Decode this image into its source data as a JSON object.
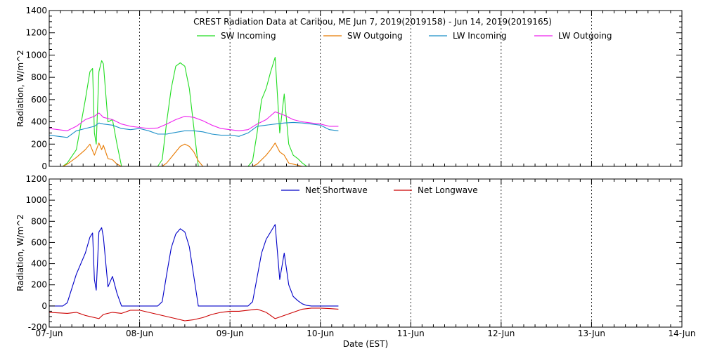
{
  "chart_data": [
    {
      "type": "line",
      "title": "CREST Radiation Data at Caribou, ME   Jun  7, 2019(2019158) - Jun 14, 2019(2019165)",
      "xlabel": "",
      "ylabel": "Radiation, W/m^2",
      "xlim": [
        0,
        7
      ],
      "ylim": [
        0,
        1400
      ],
      "yticks": [
        "0",
        "200",
        "400",
        "600",
        "800",
        "1000",
        "1200",
        "1400"
      ],
      "grid": true,
      "legend_position": "top",
      "series": [
        {
          "name": "SW Incoming",
          "color": "#22dd22",
          "x": [
            0,
            0.1,
            0.15,
            0.2,
            0.3,
            0.4,
            0.45,
            0.48,
            0.5,
            0.52,
            0.55,
            0.58,
            0.6,
            0.65,
            0.7,
            0.75,
            0.8,
            0.85,
            0.9,
            0.95,
            1.0,
            1.05,
            1.1,
            1.15,
            1.2,
            1.25,
            1.3,
            1.35,
            1.4,
            1.45,
            1.5,
            1.55,
            1.6,
            1.65,
            1.7,
            1.75,
            1.8,
            1.85,
            1.9,
            1.95,
            2.0,
            2.05,
            2.1,
            2.15,
            2.2,
            2.25,
            2.3,
            2.35,
            2.4,
            2.45,
            2.5,
            2.55,
            2.6,
            2.65,
            2.7,
            2.75,
            2.8,
            2.85,
            2.9,
            2.95,
            3.0
          ],
          "y": [
            0,
            0,
            0,
            30,
            150,
            600,
            850,
            880,
            300,
            200,
            850,
            950,
            920,
            400,
            420,
            200,
            0,
            0,
            0,
            0,
            0,
            0,
            0,
            0,
            0,
            60,
            400,
            700,
            900,
            930,
            900,
            700,
            350,
            0,
            0,
            0,
            0,
            0,
            0,
            0,
            0,
            0,
            0,
            0,
            0,
            50,
            300,
            600,
            700,
            850,
            980,
            300,
            650,
            200,
            100,
            70,
            30,
            0,
            0,
            0,
            0
          ]
        },
        {
          "name": "SW Outgoing",
          "color": "#e87a00",
          "x": [
            0,
            0.1,
            0.15,
            0.2,
            0.3,
            0.4,
            0.45,
            0.5,
            0.55,
            0.58,
            0.6,
            0.65,
            0.7,
            0.75,
            0.8,
            0.85,
            1.0,
            1.25,
            1.3,
            1.4,
            1.45,
            1.5,
            1.55,
            1.6,
            1.65,
            1.7,
            2.0,
            2.25,
            2.3,
            2.4,
            2.45,
            2.5,
            2.55,
            2.6,
            2.65,
            2.7,
            2.75,
            2.8,
            2.85,
            3.0
          ],
          "y": [
            0,
            0,
            0,
            20,
            80,
            150,
            200,
            100,
            210,
            150,
            190,
            70,
            60,
            20,
            0,
            0,
            0,
            0,
            30,
            130,
            180,
            200,
            180,
            130,
            50,
            0,
            0,
            0,
            20,
            100,
            150,
            210,
            130,
            100,
            30,
            20,
            10,
            0,
            0,
            0
          ]
        },
        {
          "name": "LW Incoming",
          "color": "#1a8fc8",
          "x": [
            0,
            0.2,
            0.3,
            0.4,
            0.5,
            0.55,
            0.6,
            0.7,
            0.8,
            0.9,
            1.0,
            1.1,
            1.2,
            1.3,
            1.4,
            1.5,
            1.6,
            1.7,
            1.8,
            1.9,
            2.0,
            2.1,
            2.2,
            2.3,
            2.4,
            2.5,
            2.6,
            2.7,
            2.8,
            2.9,
            3.0,
            3.1,
            3.2
          ],
          "y": [
            280,
            260,
            320,
            340,
            360,
            390,
            380,
            370,
            340,
            330,
            340,
            320,
            290,
            290,
            305,
            320,
            320,
            310,
            290,
            280,
            280,
            270,
            300,
            360,
            370,
            380,
            390,
            395,
            390,
            380,
            370,
            330,
            320
          ]
        },
        {
          "name": "LW Outgoing",
          "color": "#ee22ee",
          "x": [
            0,
            0.2,
            0.3,
            0.4,
            0.5,
            0.55,
            0.6,
            0.7,
            0.8,
            0.9,
            1.0,
            1.1,
            1.2,
            1.3,
            1.4,
            1.5,
            1.6,
            1.7,
            1.8,
            1.9,
            2.0,
            2.1,
            2.2,
            2.3,
            2.4,
            2.5,
            2.6,
            2.7,
            2.8,
            2.9,
            3.0,
            3.1,
            3.2
          ],
          "y": [
            340,
            320,
            360,
            420,
            450,
            480,
            440,
            420,
            380,
            360,
            350,
            340,
            345,
            380,
            420,
            450,
            440,
            410,
            370,
            340,
            330,
            320,
            330,
            380,
            420,
            490,
            460,
            420,
            400,
            390,
            380,
            360,
            360
          ]
        }
      ]
    },
    {
      "type": "line",
      "title": "",
      "xlabel": "Date (EST)",
      "ylabel": "Radiation, W/m^2",
      "xlim": [
        0,
        7
      ],
      "ylim": [
        -200,
        1200
      ],
      "yticks": [
        "-200",
        "0",
        "200",
        "400",
        "600",
        "800",
        "1000",
        "1200"
      ],
      "xticks": [
        "07-Jun",
        "08-Jun",
        "09-Jun",
        "10-Jun",
        "11-Jun",
        "12-Jun",
        "13-Jun",
        "14-Jun"
      ],
      "grid": true,
      "legend_position": "top",
      "series": [
        {
          "name": "Net Shortwave",
          "color": "#0000c8",
          "x": [
            0,
            0.15,
            0.2,
            0.3,
            0.4,
            0.45,
            0.48,
            0.5,
            0.52,
            0.55,
            0.58,
            0.6,
            0.65,
            0.7,
            0.75,
            0.8,
            0.9,
            1.0,
            1.1,
            1.2,
            1.25,
            1.3,
            1.35,
            1.4,
            1.45,
            1.5,
            1.55,
            1.6,
            1.65,
            1.7,
            1.8,
            1.9,
            2.0,
            2.1,
            2.2,
            2.25,
            2.3,
            2.35,
            2.4,
            2.45,
            2.5,
            2.55,
            2.6,
            2.65,
            2.7,
            2.75,
            2.8,
            2.85,
            2.9,
            3.0,
            3.1,
            3.2
          ],
          "y": [
            0,
            0,
            30,
            300,
            500,
            650,
            690,
            250,
            150,
            700,
            740,
            650,
            180,
            280,
            120,
            0,
            0,
            0,
            0,
            0,
            40,
            300,
            550,
            680,
            730,
            700,
            560,
            280,
            0,
            0,
            0,
            0,
            0,
            0,
            0,
            40,
            270,
            500,
            630,
            700,
            770,
            250,
            500,
            200,
            90,
            50,
            20,
            5,
            0,
            0,
            0,
            0
          ]
        },
        {
          "name": "Net Longwave",
          "color": "#cc0000",
          "x": [
            0,
            0.2,
            0.3,
            0.4,
            0.5,
            0.55,
            0.6,
            0.7,
            0.8,
            0.9,
            1.0,
            1.1,
            1.2,
            1.3,
            1.4,
            1.5,
            1.6,
            1.7,
            1.8,
            1.9,
            2.0,
            2.1,
            2.2,
            2.3,
            2.4,
            2.5,
            2.6,
            2.7,
            2.8,
            2.9,
            3.0,
            3.1,
            3.2
          ],
          "y": [
            -60,
            -70,
            -60,
            -90,
            -110,
            -120,
            -80,
            -60,
            -70,
            -40,
            -40,
            -60,
            -80,
            -100,
            -120,
            -140,
            -130,
            -110,
            -80,
            -60,
            -50,
            -50,
            -40,
            -30,
            -60,
            -120,
            -90,
            -60,
            -30,
            -20,
            -20,
            -25,
            -30
          ]
        }
      ]
    }
  ]
}
